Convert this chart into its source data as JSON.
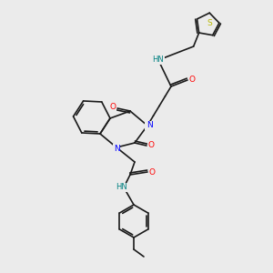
{
  "background_color": "#ebebeb",
  "bond_color": "#1a1a1a",
  "figsize": [
    3.0,
    3.0
  ],
  "dpi": 100,
  "atom_colors": {
    "N": "#0000ff",
    "O": "#ff0000",
    "S": "#b8b800",
    "HN": "#008080",
    "C": "#1a1a1a"
  }
}
